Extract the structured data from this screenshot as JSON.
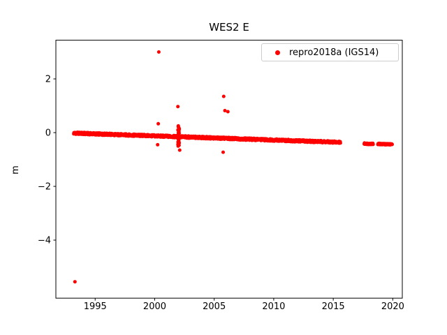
{
  "chart_data": {
    "type": "scatter",
    "title": "WES2 E",
    "xlabel": "",
    "ylabel": "m",
    "xlim": [
      1991.7,
      2020.8
    ],
    "ylim": [
      -6.16,
      3.44
    ],
    "xticks": [
      1995,
      2000,
      2005,
      2010,
      2015,
      2020
    ],
    "yticks": [
      -4,
      -2,
      0,
      2
    ],
    "grid": false,
    "legend_position": "upper right",
    "series": [
      {
        "name": "repro2018a (IGS14)",
        "color": "#ff0000",
        "marker": "dot",
        "trend_segments": [
          {
            "x_start": 1993.2,
            "x_end": 2015.6,
            "y_start": -0.02,
            "y_end": -0.36,
            "band": 0.04
          },
          {
            "x_start": 2017.6,
            "x_end": 2018.35,
            "y_start": -0.41,
            "y_end": -0.42,
            "band": 0.025
          },
          {
            "x_start": 2018.75,
            "x_end": 2019.95,
            "y_start": -0.42,
            "y_end": -0.44,
            "band": 0.025
          }
        ],
        "cluster": {
          "x": 2002.0,
          "y_min": -0.5,
          "y_max": 0.25,
          "x_spread": 0.07,
          "count": 26
        },
        "outliers": [
          [
            1993.3,
            -5.55
          ],
          [
            2000.35,
            3.0
          ],
          [
            2000.3,
            0.33
          ],
          [
            2000.25,
            -0.45
          ],
          [
            2001.95,
            0.97
          ],
          [
            2002.1,
            -0.65
          ],
          [
            2005.8,
            1.35
          ],
          [
            2005.9,
            0.82
          ],
          [
            2006.15,
            0.78
          ],
          [
            2005.75,
            -0.73
          ]
        ]
      }
    ]
  }
}
